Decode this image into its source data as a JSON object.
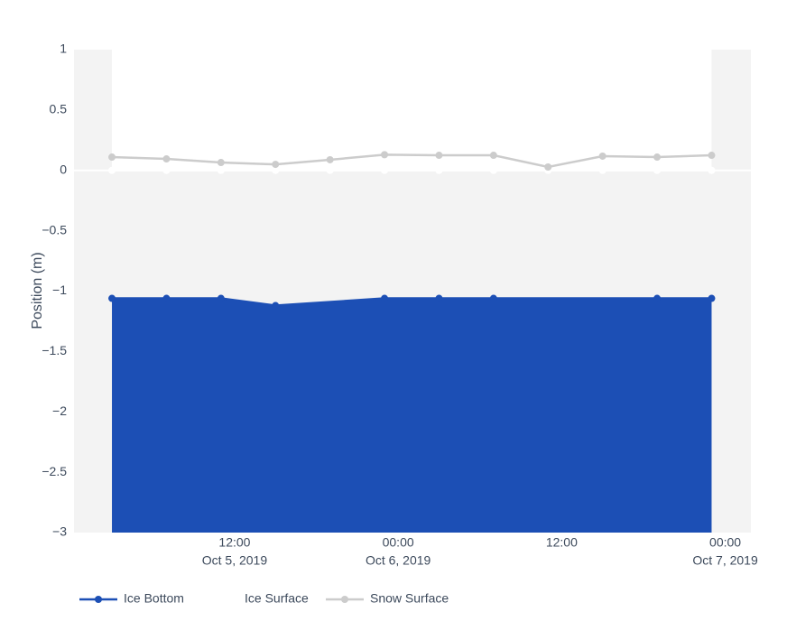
{
  "chart_data": {
    "type": "line",
    "y_axis_label": "Position (m)",
    "x": [
      "2019-10-05 03:00",
      "2019-10-05 07:00",
      "2019-10-05 11:00",
      "2019-10-05 15:00",
      "2019-10-05 19:00",
      "2019-10-05 23:00",
      "2019-10-06 03:00",
      "2019-10-06 07:00",
      "2019-10-06 11:00",
      "2019-10-06 15:00",
      "2019-10-06 19:00",
      "2019-10-06 23:00"
    ],
    "series": [
      {
        "name": "Ice Bottom",
        "color": "#1c4fb5",
        "fill": "to_bottom",
        "values": [
          -1.06,
          -1.06,
          -1.06,
          -1.12,
          null,
          -1.06,
          -1.06,
          -1.06,
          null,
          null,
          -1.06,
          -1.06
        ]
      },
      {
        "name": "Ice Surface",
        "color": "#ffffff",
        "fill": "to_top",
        "values": [
          0,
          0,
          0,
          0,
          0,
          0,
          0,
          0,
          0,
          0,
          0,
          0
        ]
      },
      {
        "name": "Snow Surface",
        "color": "#cccccc",
        "values": [
          0.11,
          0.095,
          0.065,
          0.05,
          0.088,
          0.13,
          0.125,
          0.125,
          0.028,
          0.118,
          0.11,
          0.125
        ]
      }
    ],
    "connect_gaps": true,
    "xlim": [
      "2019-10-05 00:13",
      "2019-10-07 01:53"
    ],
    "xticks": [
      {
        "value": "2019-10-05 12:00",
        "label": [
          "12:00",
          "Oct 5, 2019"
        ]
      },
      {
        "value": "2019-10-06 00:00",
        "label": [
          "00:00",
          "Oct 6, 2019"
        ]
      },
      {
        "value": "2019-10-06 12:00",
        "label": [
          "12:00"
        ]
      },
      {
        "value": "2019-10-07 00:00",
        "label": [
          "00:00",
          "Oct 7, 2019"
        ]
      }
    ],
    "ylim": [
      -3,
      1
    ],
    "yticks": [
      1,
      {
        "value": 0.5,
        "label": "0.5"
      },
      0,
      {
        "value": -0.5,
        "label": "−0.5"
      },
      {
        "value": -1,
        "label": "−1"
      },
      {
        "value": -1.5,
        "label": "−1.5"
      },
      {
        "value": -2,
        "label": "−2"
      },
      {
        "value": -2.5,
        "label": "−2.5"
      },
      {
        "value": -3,
        "label": "−3"
      }
    ],
    "plot_background": "#f3f3f3",
    "zero_line": true,
    "legend_position": "bottom"
  }
}
